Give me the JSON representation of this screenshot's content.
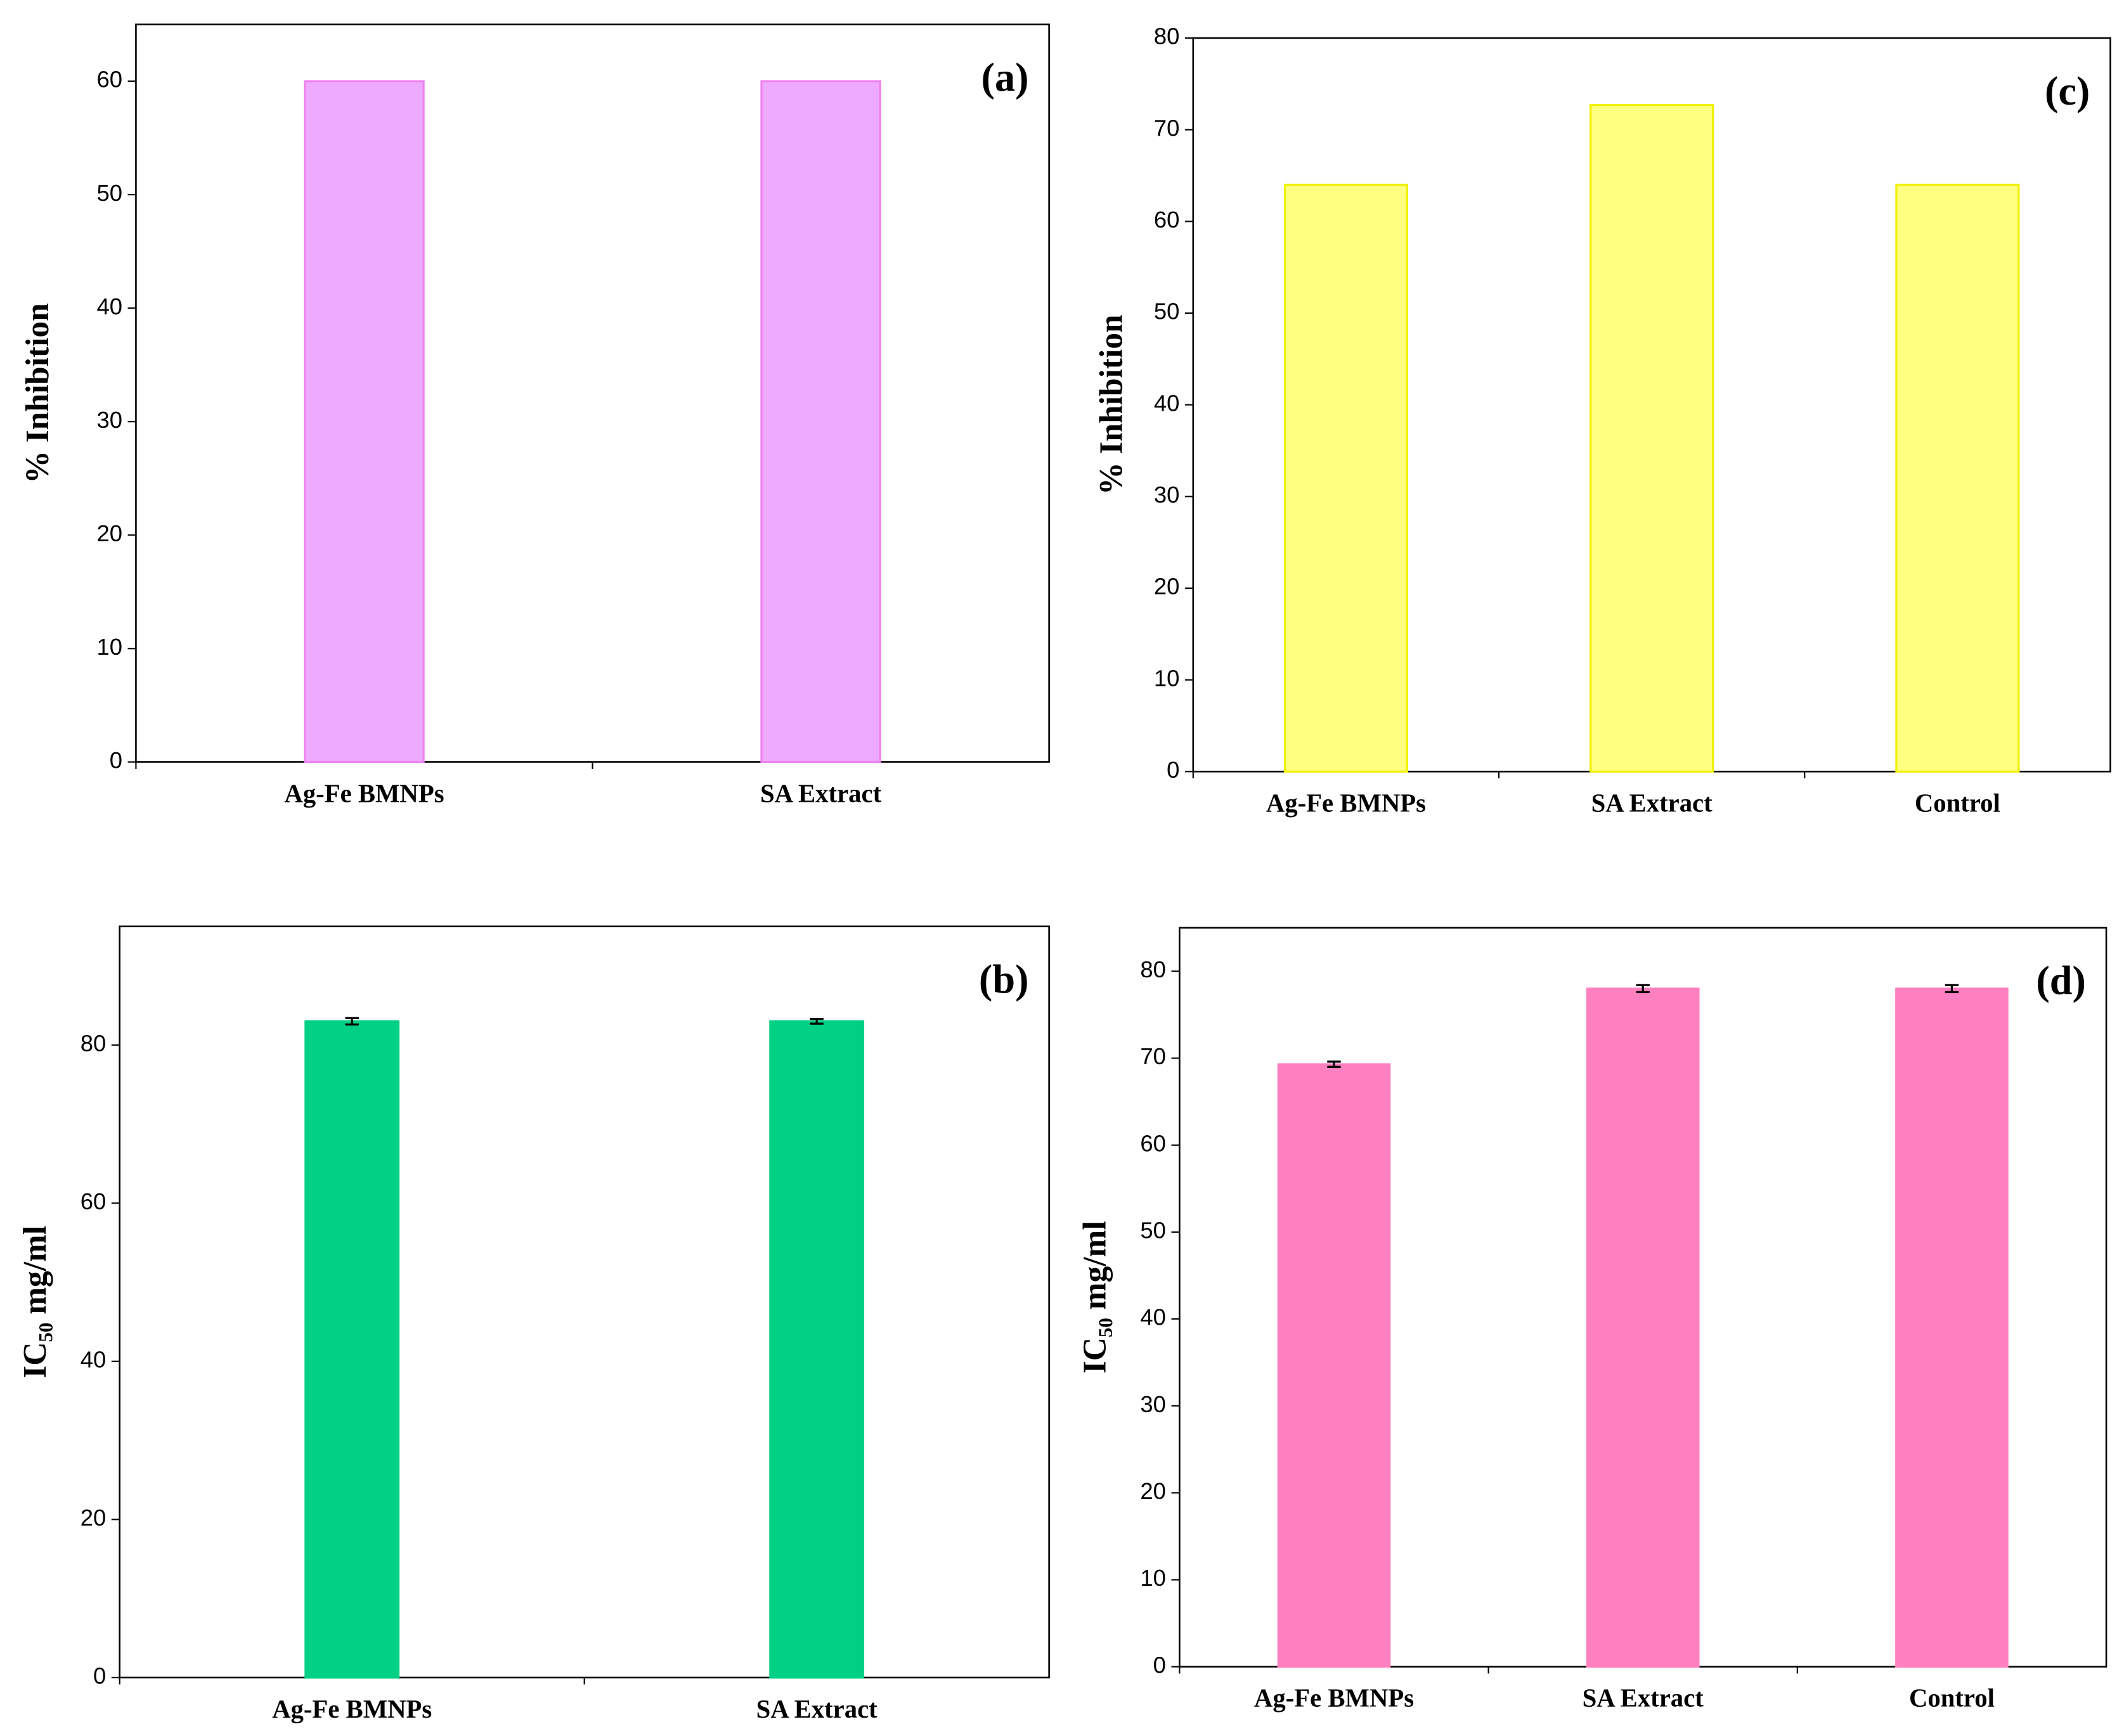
{
  "chart_data": [
    {
      "type": "bar",
      "panel_label": "(a)",
      "ylabel": "% Inhibition",
      "categories": [
        "Ag-Fe BMNPs",
        "SA Extract"
      ],
      "values": [
        60,
        60
      ],
      "color": "#eeaaff",
      "edge_color": "#ee82ee",
      "ylim": [
        0,
        65
      ],
      "yticks": [
        0,
        10,
        20,
        30,
        40,
        50,
        60
      ]
    },
    {
      "type": "bar",
      "panel_label": "(b)",
      "ylabel": "IC₅₀ mg/ml",
      "categories": [
        "Ag-Fe BMNPs",
        "SA Extract"
      ],
      "values": [
        83,
        83
      ],
      "error": [
        0.4,
        0.3
      ],
      "color": "#00d084",
      "edge_color": "#00d084",
      "ylim": [
        0,
        95
      ],
      "yticks": [
        0,
        20,
        40,
        60,
        80
      ]
    },
    {
      "type": "bar",
      "panel_label": "(c)",
      "ylabel": "% Inhibition",
      "categories": [
        "Ag-Fe BMNPs",
        "SA Extract",
        "Control"
      ],
      "values": [
        64,
        72.7,
        64
      ],
      "color": "#ffff80",
      "edge_color": "#f0f000",
      "ylim": [
        0,
        80
      ],
      "yticks": [
        0,
        10,
        20,
        30,
        40,
        50,
        60,
        70,
        80
      ]
    },
    {
      "type": "bar",
      "panel_label": "(d)",
      "ylabel": "IC₅₀ mg/ml",
      "categories": [
        "Ag-Fe BMNPs",
        "SA Extract",
        "Control"
      ],
      "values": [
        69.3,
        78,
        78
      ],
      "error": [
        0.3,
        0.4,
        0.4
      ],
      "color": "#ff80c0",
      "edge_color": "#ff80c0",
      "ylim": [
        0,
        85
      ],
      "yticks": [
        0,
        10,
        20,
        30,
        40,
        50,
        60,
        70,
        80
      ]
    }
  ]
}
